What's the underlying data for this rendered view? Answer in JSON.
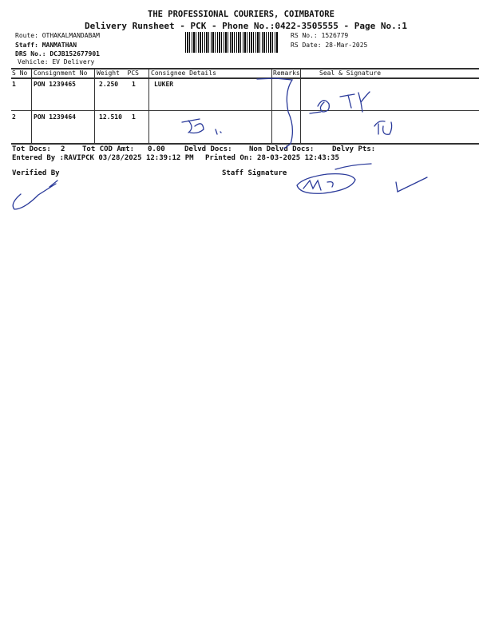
{
  "header": {
    "company": "THE PROFESSIONAL COURIERS, COIMBATORE",
    "subtitle": "Delivery Runsheet - PCK - Phone No.:0422-3505555 - Page No.:1"
  },
  "info": {
    "route": "Route: OTHAKALMANDABAM",
    "staff": "Staff: MANMATHAN",
    "drs": "DRS No.: DCJB152677901",
    "vehicle": "Vehicle: EV Delivery",
    "rs_no": "RS No.: 1526779",
    "rs_date": "RS Date: 28-Mar-2025"
  },
  "table": {
    "headers": [
      "S No",
      "Consignment No",
      "Weight  PCS",
      "Consignee Details",
      "Remarks",
      "Seal & Signature"
    ],
    "rows": [
      {
        "sno": "1",
        "consignment": "PON 1239465",
        "weight": "2.250",
        "pcs": "1",
        "consignee": "LUKER"
      },
      {
        "sno": "2",
        "consignment": "PON 1239464",
        "weight": "12.510",
        "pcs": "1",
        "consignee": ""
      }
    ]
  },
  "totals": {
    "tot_docs_label": "Tot Docs:",
    "tot_docs": "2",
    "cod_label": "Tot COD Amt:",
    "cod": "0.00",
    "delvd_label": "Delvd Docs:",
    "non_delvd_label": "Non Delvd Docs:",
    "delvy_pts_label": "Delvy Pts:"
  },
  "entered": "Entered By :RAVIPCK 03/28/2025 12:39:12 PM",
  "printed": "Printed On: 28-03-2025 12:43:35",
  "verified_by": "Verified By",
  "staff_signature": "Staff Signature",
  "ink_color": "#2a3a9a"
}
